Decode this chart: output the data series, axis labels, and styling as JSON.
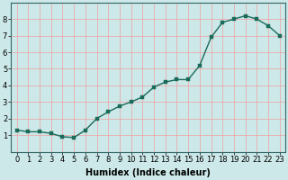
{
  "x": [
    0,
    1,
    2,
    3,
    4,
    5,
    6,
    7,
    8,
    9,
    10,
    11,
    12,
    13,
    14,
    15,
    16,
    17,
    18,
    19,
    20,
    21,
    22,
    23
  ],
  "y": [
    1.3,
    1.2,
    1.2,
    1.1,
    0.9,
    0.85,
    1.3,
    2.0,
    2.4,
    2.75,
    3.0,
    3.3,
    3.9,
    4.2,
    4.35,
    4.35,
    5.2,
    6.9,
    7.8,
    8.0,
    8.2,
    8.0,
    7.6,
    7.0
  ],
  "xlabel": "Humidex (Indice chaleur)",
  "ylim": [
    0,
    9
  ],
  "xlim": [
    -0.5,
    23.5
  ],
  "yticks": [
    1,
    2,
    3,
    4,
    5,
    6,
    7,
    8
  ],
  "xticks": [
    0,
    1,
    2,
    3,
    4,
    5,
    6,
    7,
    8,
    9,
    10,
    11,
    12,
    13,
    14,
    15,
    16,
    17,
    18,
    19,
    20,
    21,
    22,
    23
  ],
  "line_color": "#1a6b5a",
  "marker_color": "#1a6b5a",
  "bg_color": "#cce8e8",
  "grid_color_major": "#f0a0a0",
  "grid_color_minor": "#f0a0a0",
  "tick_label_color": "#000000",
  "xlabel_color": "#000000",
  "xlabel_fontsize": 7,
  "tick_fontsize": 6,
  "line_width": 1.0,
  "marker_size": 2.5,
  "spine_color": "#336666"
}
